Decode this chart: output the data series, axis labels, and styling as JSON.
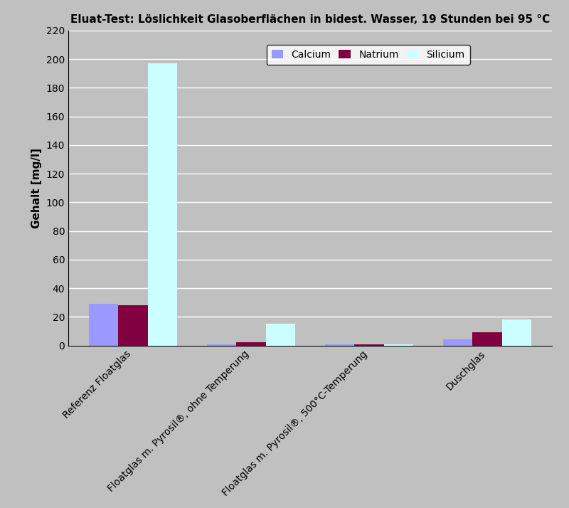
{
  "title": "Eluat-Test: Löslichkeit Glasoberflächen in bidest. Wasser, 19 Stunden bei 95 °C",
  "ylabel": "Gehalt [mg/l]",
  "ylim": [
    0,
    220
  ],
  "yticks": [
    0,
    20,
    40,
    60,
    80,
    100,
    120,
    140,
    160,
    180,
    200,
    220
  ],
  "categories": [
    "Referenz Floatglas",
    "Floatglas m. Pyrosil®, ohne Temperung",
    "Floatglas m. Pyrosil®, 500°C-Temperung",
    "Duschglas"
  ],
  "series": {
    "Calcium": [
      29,
      1,
      1,
      4
    ],
    "Natrium": [
      28,
      2,
      1,
      9
    ],
    "Silicium": [
      197,
      15,
      1,
      18
    ]
  },
  "colors": {
    "Calcium": "#9999FF",
    "Natrium": "#800040",
    "Silicium": "#CCFFFF"
  },
  "background_color": "#C0C0C0",
  "plot_bg_color": "#C0C0C0",
  "legend_bg": "#FFFFFF",
  "bar_width": 0.25,
  "title_fontsize": 11,
  "axis_label_fontsize": 11,
  "tick_fontsize": 10,
  "legend_fontsize": 10
}
